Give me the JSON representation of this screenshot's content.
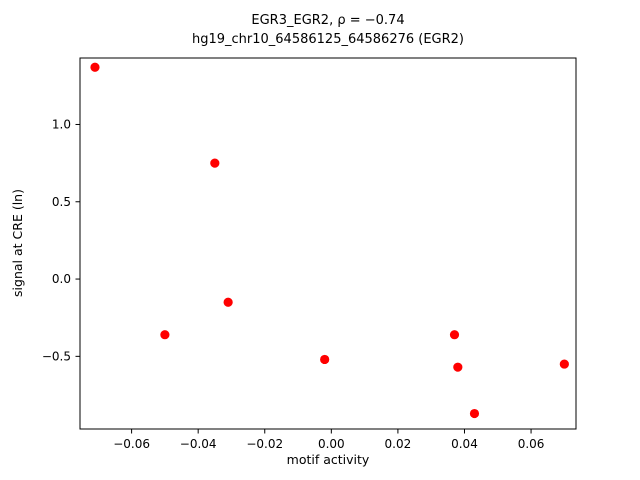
{
  "figure": {
    "title_line1": "EGR3_EGR2, ρ = −0.74",
    "title_line2": "hg19_chr10_64586125_64586276 (EGR2)",
    "xlabel": "motif activity",
    "ylabel": "signal at CRE (ln)"
  },
  "chart_data": {
    "type": "scatter",
    "title": "EGR3_EGR2, ρ = −0.74 | hg19_chr10_64586125_64586276 (EGR2)",
    "xlabel": "motif activity",
    "ylabel": "signal at CRE (ln)",
    "xlim": [
      -0.0755,
      0.0735
    ],
    "ylim": [
      -0.97,
      1.43
    ],
    "x_ticks": [
      -0.06,
      -0.04,
      -0.02,
      0.0,
      0.02,
      0.04,
      0.06
    ],
    "y_ticks": [
      -0.5,
      0.0,
      0.5,
      1.0
    ],
    "grid": false,
    "legend": "none",
    "marker_color": "#ff0000",
    "marker_radius": 4.6,
    "points": [
      [
        -0.071,
        1.37
      ],
      [
        -0.035,
        0.75
      ],
      [
        -0.031,
        -0.15
      ],
      [
        -0.05,
        -0.36
      ],
      [
        -0.002,
        -0.52
      ],
      [
        0.037,
        -0.36
      ],
      [
        0.038,
        -0.57
      ],
      [
        0.043,
        -0.87
      ],
      [
        0.07,
        -0.55
      ]
    ]
  }
}
